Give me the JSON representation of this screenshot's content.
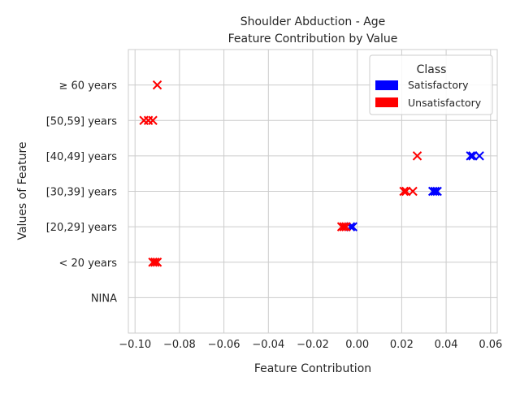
{
  "chart_data": {
    "type": "scatter",
    "title": "Shoulder Abduction - Age",
    "subtitle": "Feature Contribution by Value",
    "xlabel": "Feature Contribution",
    "ylabel": "Values of Feature",
    "xlim": [
      -0.103,
      0.063
    ],
    "xticks": [
      -0.1,
      -0.08,
      -0.06,
      -0.04,
      -0.02,
      0.0,
      0.02,
      0.04,
      0.06
    ],
    "xtick_labels": [
      "−0.10",
      "−0.08",
      "−0.06",
      "−0.04",
      "−0.02",
      "0.00",
      "0.02",
      "0.04",
      "0.06"
    ],
    "categories": [
      "NINA",
      "< 20 years",
      "[20,29] years",
      "[30,39] years",
      "[40,49] years",
      "[50,59] years",
      "≥ 60 years"
    ],
    "grid": true,
    "marker": "x",
    "legend": {
      "title": "Class",
      "placement": "top-right",
      "entries": [
        {
          "label": "Satisfactory",
          "color": "#0000ff"
        },
        {
          "label": "Unsatisfactory",
          "color": "#ff0000"
        }
      ]
    },
    "series": [
      {
        "name": "Satisfactory",
        "color": "#0000ff",
        "points": [
          {
            "x": -0.003,
            "y": "[20,29] years"
          },
          {
            "x": -0.002,
            "y": "[20,29] years"
          },
          {
            "x": 0.034,
            "y": "[30,39] years"
          },
          {
            "x": 0.035,
            "y": "[30,39] years"
          },
          {
            "x": 0.036,
            "y": "[30,39] years"
          },
          {
            "x": 0.051,
            "y": "[40,49] years"
          },
          {
            "x": 0.052,
            "y": "[40,49] years"
          },
          {
            "x": 0.055,
            "y": "[40,49] years"
          }
        ]
      },
      {
        "name": "Unsatisfactory",
        "color": "#ff0000",
        "points": [
          {
            "x": -0.09,
            "y": "≥ 60 years"
          },
          {
            "x": -0.096,
            "y": "[50,59] years"
          },
          {
            "x": -0.094,
            "y": "[50,59] years"
          },
          {
            "x": -0.092,
            "y": "[50,59] years"
          },
          {
            "x": 0.027,
            "y": "[40,49] years"
          },
          {
            "x": 0.021,
            "y": "[30,39] years"
          },
          {
            "x": 0.022,
            "y": "[30,39] years"
          },
          {
            "x": 0.025,
            "y": "[30,39] years"
          },
          {
            "x": -0.007,
            "y": "[20,29] years"
          },
          {
            "x": -0.006,
            "y": "[20,29] years"
          },
          {
            "x": -0.005,
            "y": "[20,29] years"
          },
          {
            "x": -0.092,
            "y": "< 20 years"
          },
          {
            "x": -0.091,
            "y": "< 20 years"
          },
          {
            "x": -0.09,
            "y": "< 20 years"
          }
        ]
      }
    ]
  }
}
